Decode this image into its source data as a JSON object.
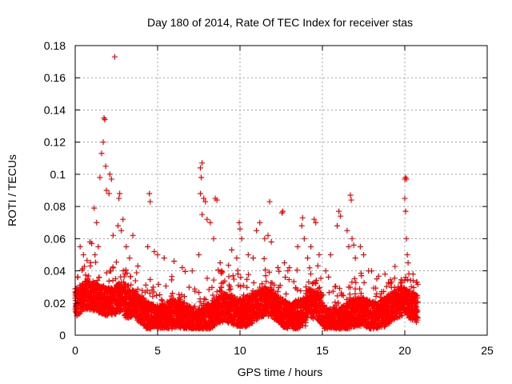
{
  "chart_data": {
    "type": "scatter",
    "title": "Day 180 of 2014, Rate Of TEC Index for receiver stas",
    "xlabel": "GPS time / hours",
    "ylabel": "ROTI / TECUs",
    "xlim": [
      0,
      25
    ],
    "ylim": [
      0,
      0.18
    ],
    "xticks": [
      0,
      5,
      10,
      15,
      20,
      25
    ],
    "yticks": [
      0,
      0.02,
      0.04,
      0.06,
      0.08,
      0.1,
      0.12,
      0.14,
      0.16,
      0.18
    ],
    "xtick_labels": [
      "0",
      "5",
      "10",
      "15",
      "20",
      "25"
    ],
    "ytick_labels": [
      "0",
      "0.02",
      "0.04",
      "0.06",
      "0.08",
      "0.1",
      "0.12",
      "0.14",
      "0.16",
      "0.18"
    ],
    "grid": true,
    "marker": "+",
    "color": "#ff0000",
    "series": [
      {
        "name": "ROTI",
        "points": [
          [
            2.4,
            0.173
          ],
          [
            1.75,
            0.135
          ],
          [
            1.8,
            0.134
          ],
          [
            1.7,
            0.12
          ],
          [
            1.6,
            0.113
          ],
          [
            1.85,
            0.105
          ],
          [
            2.1,
            0.1
          ],
          [
            2.2,
            0.097
          ],
          [
            1.5,
            0.098
          ],
          [
            1.9,
            0.09
          ],
          [
            2.05,
            0.088
          ],
          [
            2.7,
            0.088
          ],
          [
            2.65,
            0.085
          ],
          [
            2.9,
            0.072
          ],
          [
            2.6,
            0.068
          ],
          [
            2.8,
            0.065
          ],
          [
            2.3,
            0.062
          ],
          [
            3.5,
            0.062
          ],
          [
            1.15,
            0.079
          ],
          [
            1.3,
            0.07
          ],
          [
            0.9,
            0.058
          ],
          [
            1.0,
            0.057
          ],
          [
            0.3,
            0.055
          ],
          [
            0.5,
            0.05
          ],
          [
            1.4,
            0.055
          ],
          [
            1.2,
            0.05
          ],
          [
            3.1,
            0.055
          ],
          [
            3.3,
            0.048
          ],
          [
            3.8,
            0.043
          ],
          [
            4.5,
            0.088
          ],
          [
            4.55,
            0.083
          ],
          [
            4.4,
            0.055
          ],
          [
            4.8,
            0.052
          ],
          [
            5.0,
            0.05
          ],
          [
            5.4,
            0.048
          ],
          [
            6.0,
            0.046
          ],
          [
            6.5,
            0.042
          ],
          [
            7.1,
            0.04
          ],
          [
            7.5,
            0.05
          ],
          [
            7.7,
            0.107
          ],
          [
            7.6,
            0.104
          ],
          [
            7.65,
            0.098
          ],
          [
            7.6,
            0.088
          ],
          [
            7.8,
            0.085
          ],
          [
            7.9,
            0.083
          ],
          [
            8.0,
            0.072
          ],
          [
            8.2,
            0.07
          ],
          [
            7.7,
            0.075
          ],
          [
            8.5,
            0.085
          ],
          [
            8.6,
            0.084
          ],
          [
            8.4,
            0.06
          ],
          [
            8.8,
            0.045
          ],
          [
            9.5,
            0.053
          ],
          [
            9.8,
            0.048
          ],
          [
            9.95,
            0.07
          ],
          [
            10.0,
            0.066
          ],
          [
            10.1,
            0.06
          ],
          [
            10.5,
            0.05
          ],
          [
            10.8,
            0.048
          ],
          [
            11.0,
            0.065
          ],
          [
            11.2,
            0.07
          ],
          [
            11.5,
            0.06
          ],
          [
            11.7,
            0.062
          ],
          [
            11.8,
            0.083
          ],
          [
            11.9,
            0.058
          ],
          [
            12.3,
            0.042
          ],
          [
            12.6,
            0.077
          ],
          [
            12.55,
            0.076
          ],
          [
            12.7,
            0.045
          ],
          [
            13.0,
            0.042
          ],
          [
            13.5,
            0.055
          ],
          [
            13.8,
            0.073
          ],
          [
            13.75,
            0.068
          ],
          [
            13.9,
            0.06
          ],
          [
            14.1,
            0.048
          ],
          [
            14.3,
            0.055
          ],
          [
            14.5,
            0.072
          ],
          [
            14.6,
            0.07
          ],
          [
            14.8,
            0.05
          ],
          [
            15.2,
            0.04
          ],
          [
            15.5,
            0.05
          ],
          [
            15.9,
            0.068
          ],
          [
            16.0,
            0.077
          ],
          [
            16.1,
            0.074
          ],
          [
            16.5,
            0.065
          ],
          [
            16.6,
            0.055
          ],
          [
            16.7,
            0.087
          ],
          [
            16.75,
            0.084
          ],
          [
            16.8,
            0.06
          ],
          [
            16.9,
            0.056
          ],
          [
            17.0,
            0.048
          ],
          [
            17.3,
            0.055
          ],
          [
            17.5,
            0.05
          ],
          [
            17.8,
            0.04
          ],
          [
            18.3,
            0.035
          ],
          [
            18.8,
            0.038
          ],
          [
            19.2,
            0.033
          ],
          [
            19.6,
            0.03
          ],
          [
            20.0,
            0.097
          ],
          [
            20.05,
            0.098
          ],
          [
            20.1,
            0.097
          ],
          [
            20.0,
            0.085
          ],
          [
            20.05,
            0.077
          ],
          [
            20.1,
            0.06
          ],
          [
            20.15,
            0.05
          ],
          [
            20.2,
            0.045
          ],
          [
            20.5,
            0.038
          ],
          [
            20.7,
            0.033
          ]
        ]
      }
    ]
  }
}
